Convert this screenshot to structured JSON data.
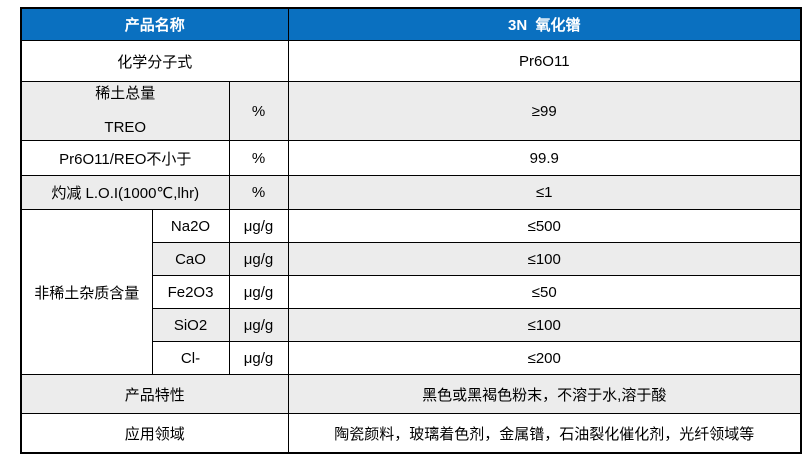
{
  "header": {
    "label": "产品名称",
    "value": "3N  氧化镨"
  },
  "rows": {
    "formula": {
      "label": "化学分子式",
      "value": "Pr6O11"
    },
    "treo": {
      "label": "稀土总量",
      "sublabel": "TREO",
      "unit": "%",
      "value": "≥99"
    },
    "purity": {
      "label": "Pr6O11/REO不小于",
      "unit": "%",
      "value": "99.9"
    },
    "loi": {
      "label": "灼减 L.O.I(1000℃,lhr)",
      "unit": "%",
      "value": "≤1"
    },
    "impurities": {
      "label": "非稀土杂质含量",
      "items": [
        {
          "name": "Na2O",
          "unit": "μg/g",
          "value": "≤500"
        },
        {
          "name": "CaO",
          "unit": "μg/g",
          "value": "≤100"
        },
        {
          "name": "Fe2O3",
          "unit": "μg/g",
          "value": "≤50"
        },
        {
          "name": "SiO2",
          "unit": "μg/g",
          "value": "≤100"
        },
        {
          "name": "Cl-",
          "unit": "μg/g",
          "value": "≤200"
        }
      ]
    },
    "characteristics": {
      "label": "产品特性",
      "value": "黑色或黑褐色粉末，不溶于水,溶于酸"
    },
    "applications": {
      "label": "应用领域",
      "value": "陶瓷颜料，玻璃着色剂，金属镨，石油裂化催化剂，光纤领域等"
    }
  },
  "colors": {
    "header_bg": "#0a70c0",
    "header_text": "#ffffff",
    "stripe_bg": "#ececec",
    "border": "#000000"
  }
}
